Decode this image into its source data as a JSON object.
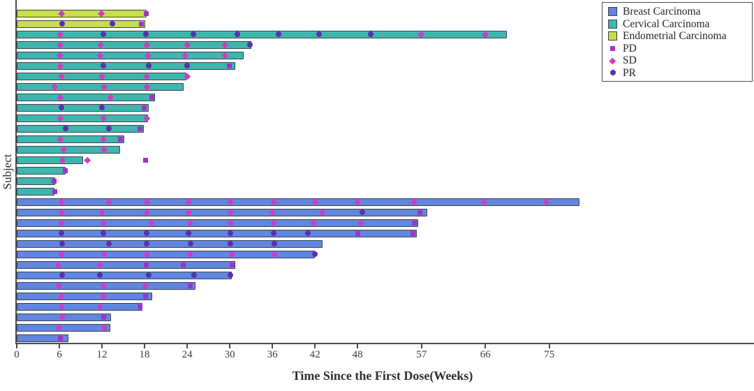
{
  "figure": {
    "background": "#ffffff"
  },
  "chart_data": {
    "type": "bar",
    "subtype": "swimmer-plot",
    "title": "",
    "xlabel": "Time Since the First Dose(Weeks)",
    "ylabel": "Subject",
    "x_ticks": [
      0,
      6,
      12,
      18,
      24,
      30,
      36,
      42,
      48,
      57,
      66,
      75
    ],
    "xlim": [
      0,
      104
    ],
    "grid": false,
    "legend_position": "top-right",
    "group_colors": {
      "Breast Carcinoma": "#6186e0",
      "Cervical Carcinoma": "#3eb6ae",
      "Endometrial Carcinoma": "#c9de4b"
    },
    "bar_edge_color": "#3d434d",
    "axis_color": "#4a4a4a",
    "marker_styles": {
      "PD": {
        "shape": "square",
        "color": "#9c33cb"
      },
      "SD": {
        "shape": "diamond",
        "color": "#cf3cc3"
      },
      "PR": {
        "shape": "circle",
        "color": "#5831ad"
      }
    },
    "legend_groups": [
      "Breast Carcinoma",
      "Cervical Carcinoma",
      "Endometrial Carcinoma"
    ],
    "legend_markers": [
      "PD",
      "SD",
      "PR"
    ],
    "subjects": [
      {
        "group": "Endometrial Carcinoma",
        "bar_weeks": 18.3,
        "events": [
          {
            "type": "SD",
            "week": 6.3
          },
          {
            "type": "SD",
            "week": 11.9
          },
          {
            "type": "PD",
            "week": 18.2
          }
        ]
      },
      {
        "group": "Endometrial Carcinoma",
        "bar_weeks": 18.1,
        "events": [
          {
            "type": "PR",
            "week": 6.4
          },
          {
            "type": "PR",
            "week": 13.5
          },
          {
            "type": "PD",
            "week": 17.6
          }
        ]
      },
      {
        "group": "Cervical Carcinoma",
        "bar_weeks": 69.0,
        "events": [
          {
            "type": "SD",
            "week": 6.1
          },
          {
            "type": "PR",
            "week": 12.2
          },
          {
            "type": "PR",
            "week": 18.2
          },
          {
            "type": "PR",
            "week": 24.9
          },
          {
            "type": "PR",
            "week": 31.1
          },
          {
            "type": "PR",
            "week": 36.9
          },
          {
            "type": "PR",
            "week": 42.6
          },
          {
            "type": "PR",
            "week": 49.9
          },
          {
            "type": "SD",
            "week": 57.0
          },
          {
            "type": "SD",
            "week": 66.0
          }
        ]
      },
      {
        "group": "Cervical Carcinoma",
        "bar_weeks": 33.0,
        "events": [
          {
            "type": "SD",
            "week": 6.1
          },
          {
            "type": "SD",
            "week": 11.8
          },
          {
            "type": "SD",
            "week": 18.3
          },
          {
            "type": "SD",
            "week": 24.0
          },
          {
            "type": "SD",
            "week": 29.3
          },
          {
            "type": "PR",
            "week": 32.8
          }
        ]
      },
      {
        "group": "Cervical Carcinoma",
        "bar_weeks": 32.0,
        "events": [
          {
            "type": "SD",
            "week": 6.1
          },
          {
            "type": "SD",
            "week": 11.7
          },
          {
            "type": "SD",
            "week": 18.5
          },
          {
            "type": "SD",
            "week": 23.7
          },
          {
            "type": "SD",
            "week": 29.3
          }
        ]
      },
      {
        "group": "Cervical Carcinoma",
        "bar_weeks": 30.8,
        "events": [
          {
            "type": "SD",
            "week": 6.1
          },
          {
            "type": "PR",
            "week": 12.2
          },
          {
            "type": "PR",
            "week": 18.6
          },
          {
            "type": "PR",
            "week": 24.0
          },
          {
            "type": "PD",
            "week": 29.9
          }
        ]
      },
      {
        "group": "Cervical Carcinoma",
        "bar_weeks": 23.9,
        "events": [
          {
            "type": "SD",
            "week": 6.3
          },
          {
            "type": "SD",
            "week": 12.0
          },
          {
            "type": "SD",
            "week": 18.3
          },
          {
            "type": "SD",
            "week": 24.0
          }
        ]
      },
      {
        "group": "Cervical Carcinoma",
        "bar_weeks": 23.5,
        "events": [
          {
            "type": "SD",
            "week": 5.3
          },
          {
            "type": "SD",
            "week": 12.3
          },
          {
            "type": "SD",
            "week": 18.3
          }
        ]
      },
      {
        "group": "Cervical Carcinoma",
        "bar_weeks": 19.5,
        "events": [
          {
            "type": "SD",
            "week": 6.1
          },
          {
            "type": "SD",
            "week": 13.2
          },
          {
            "type": "PD",
            "week": 19.0
          }
        ]
      },
      {
        "group": "Cervical Carcinoma",
        "bar_weeks": 18.6,
        "events": [
          {
            "type": "PR",
            "week": 6.3
          },
          {
            "type": "PR",
            "week": 12.0
          },
          {
            "type": "PD",
            "week": 17.9
          }
        ]
      },
      {
        "group": "Cervical Carcinoma",
        "bar_weeks": 18.5,
        "events": [
          {
            "type": "SD",
            "week": 6.1
          },
          {
            "type": "SD",
            "week": 12.2
          },
          {
            "type": "SD",
            "week": 18.3
          }
        ]
      },
      {
        "group": "Cervical Carcinoma",
        "bar_weeks": 17.9,
        "events": [
          {
            "type": "PR",
            "week": 6.9
          },
          {
            "type": "PR",
            "week": 13.0
          },
          {
            "type": "PD",
            "week": 17.4
          }
        ]
      },
      {
        "group": "Cervical Carcinoma",
        "bar_weeks": 15.1,
        "events": [
          {
            "type": "SD",
            "week": 6.1
          },
          {
            "type": "SD",
            "week": 12.2
          },
          {
            "type": "PD",
            "week": 14.6
          }
        ]
      },
      {
        "group": "Cervical Carcinoma",
        "bar_weeks": 14.6,
        "events": [
          {
            "type": "SD",
            "week": 6.6
          },
          {
            "type": "SD",
            "week": 12.3
          }
        ]
      },
      {
        "group": "Cervical Carcinoma",
        "bar_weeks": 9.3,
        "events": [
          {
            "type": "SD",
            "week": 6.4
          },
          {
            "type": "SD",
            "week": 10.0
          },
          {
            "type": "PD",
            "week": 18.1
          }
        ]
      },
      {
        "group": "Cervical Carcinoma",
        "bar_weeks": 6.9,
        "events": [
          {
            "type": "PD",
            "week": 6.8
          }
        ]
      },
      {
        "group": "Cervical Carcinoma",
        "bar_weeks": 5.4,
        "events": [
          {
            "type": "PD",
            "week": 5.3
          }
        ]
      },
      {
        "group": "Cervical Carcinoma",
        "bar_weeks": 5.3,
        "events": [
          {
            "type": "PD",
            "week": 5.4
          }
        ]
      },
      {
        "group": "Breast Carcinoma",
        "bar_weeks": 79.3,
        "events": [
          {
            "type": "SD",
            "week": 6.3
          },
          {
            "type": "SD",
            "week": 13.0
          },
          {
            "type": "SD",
            "week": 18.3
          },
          {
            "type": "SD",
            "week": 24.2
          },
          {
            "type": "SD",
            "week": 30.1
          },
          {
            "type": "SD",
            "week": 36.2
          },
          {
            "type": "SD",
            "week": 42.0
          },
          {
            "type": "SD",
            "week": 48.0
          },
          {
            "type": "SD",
            "week": 56.0
          },
          {
            "type": "SD",
            "week": 65.8
          },
          {
            "type": "SD",
            "week": 74.6
          }
        ]
      },
      {
        "group": "Breast Carcinoma",
        "bar_weeks": 57.8,
        "events": [
          {
            "type": "SD",
            "week": 6.3
          },
          {
            "type": "SD",
            "week": 12.0
          },
          {
            "type": "SD",
            "week": 18.3
          },
          {
            "type": "SD",
            "week": 24.2
          },
          {
            "type": "SD",
            "week": 30.1
          },
          {
            "type": "SD",
            "week": 36.0
          },
          {
            "type": "SD",
            "week": 43.0
          },
          {
            "type": "PR",
            "week": 48.7
          },
          {
            "type": "PD",
            "week": 56.8
          }
        ]
      },
      {
        "group": "Breast Carcinoma",
        "bar_weeks": 56.5,
        "events": [
          {
            "type": "SD",
            "week": 6.3
          },
          {
            "type": "SD",
            "week": 12.2
          },
          {
            "type": "SD",
            "week": 19.0
          },
          {
            "type": "SD",
            "week": 24.4
          },
          {
            "type": "SD",
            "week": 30.1
          },
          {
            "type": "SD",
            "week": 36.2
          },
          {
            "type": "SD",
            "week": 41.8
          },
          {
            "type": "SD",
            "week": 48.5
          },
          {
            "type": "PD",
            "week": 56.0
          }
        ]
      },
      {
        "group": "Breast Carcinoma",
        "bar_weeks": 56.3,
        "events": [
          {
            "type": "PR",
            "week": 6.3
          },
          {
            "type": "PR",
            "week": 12.2
          },
          {
            "type": "PR",
            "week": 18.3
          },
          {
            "type": "PR",
            "week": 24.2
          },
          {
            "type": "PR",
            "week": 30.1
          },
          {
            "type": "PR",
            "week": 36.2
          },
          {
            "type": "PR",
            "week": 41.0
          },
          {
            "type": "PD",
            "week": 48.0
          },
          {
            "type": "PD",
            "week": 55.8
          }
        ]
      },
      {
        "group": "Breast Carcinoma",
        "bar_weeks": 43.1,
        "events": [
          {
            "type": "PR",
            "week": 6.4
          },
          {
            "type": "PR",
            "week": 13.0
          },
          {
            "type": "PR",
            "week": 18.3
          },
          {
            "type": "PR",
            "week": 24.5
          },
          {
            "type": "PR",
            "week": 30.1
          },
          {
            "type": "PR",
            "week": 36.3
          }
        ]
      },
      {
        "group": "Breast Carcinoma",
        "bar_weeks": 42.0,
        "events": [
          {
            "type": "SD",
            "week": 6.3
          },
          {
            "type": "SD",
            "week": 12.3
          },
          {
            "type": "SD",
            "week": 18.3
          },
          {
            "type": "SD",
            "week": 24.4
          },
          {
            "type": "SD",
            "week": 30.3
          },
          {
            "type": "SD",
            "week": 36.3
          },
          {
            "type": "PR",
            "week": 42.0
          }
        ]
      },
      {
        "group": "Breast Carcinoma",
        "bar_weeks": 30.8,
        "events": [
          {
            "type": "SD",
            "week": 5.8
          },
          {
            "type": "SD",
            "week": 11.7
          },
          {
            "type": "PD",
            "week": 18.2
          },
          {
            "type": "PD",
            "week": 23.5
          },
          {
            "type": "PD",
            "week": 30.3
          }
        ]
      },
      {
        "group": "Breast Carcinoma",
        "bar_weeks": 30.3,
        "events": [
          {
            "type": "PR",
            "week": 6.4
          },
          {
            "type": "PR",
            "week": 11.7
          },
          {
            "type": "PR",
            "week": 18.6
          },
          {
            "type": "PR",
            "week": 25.0
          },
          {
            "type": "PR",
            "week": 30.1
          }
        ]
      },
      {
        "group": "Breast Carcinoma",
        "bar_weeks": 25.2,
        "events": [
          {
            "type": "SD",
            "week": 5.9
          },
          {
            "type": "SD",
            "week": 12.2
          },
          {
            "type": "SD",
            "week": 18.1
          },
          {
            "type": "PD",
            "week": 24.4
          }
        ]
      },
      {
        "group": "Breast Carcinoma",
        "bar_weeks": 19.1,
        "events": [
          {
            "type": "SD",
            "week": 6.3
          },
          {
            "type": "SD",
            "week": 12.2
          },
          {
            "type": "PD",
            "week": 18.1
          }
        ]
      },
      {
        "group": "Breast Carcinoma",
        "bar_weeks": 17.7,
        "events": [
          {
            "type": "SD",
            "week": 6.3
          },
          {
            "type": "SD",
            "week": 11.7
          },
          {
            "type": "PD",
            "week": 17.4
          }
        ]
      },
      {
        "group": "Breast Carcinoma",
        "bar_weeks": 13.3,
        "events": [
          {
            "type": "SD",
            "week": 6.4
          },
          {
            "type": "PD",
            "week": 12.2
          }
        ]
      },
      {
        "group": "Breast Carcinoma",
        "bar_weeks": 13.2,
        "events": [
          {
            "type": "SD",
            "week": 5.9
          },
          {
            "type": "SD",
            "week": 12.3
          }
        ]
      },
      {
        "group": "Breast Carcinoma",
        "bar_weeks": 7.3,
        "events": [
          {
            "type": "PD",
            "week": 6.1
          }
        ]
      }
    ]
  }
}
